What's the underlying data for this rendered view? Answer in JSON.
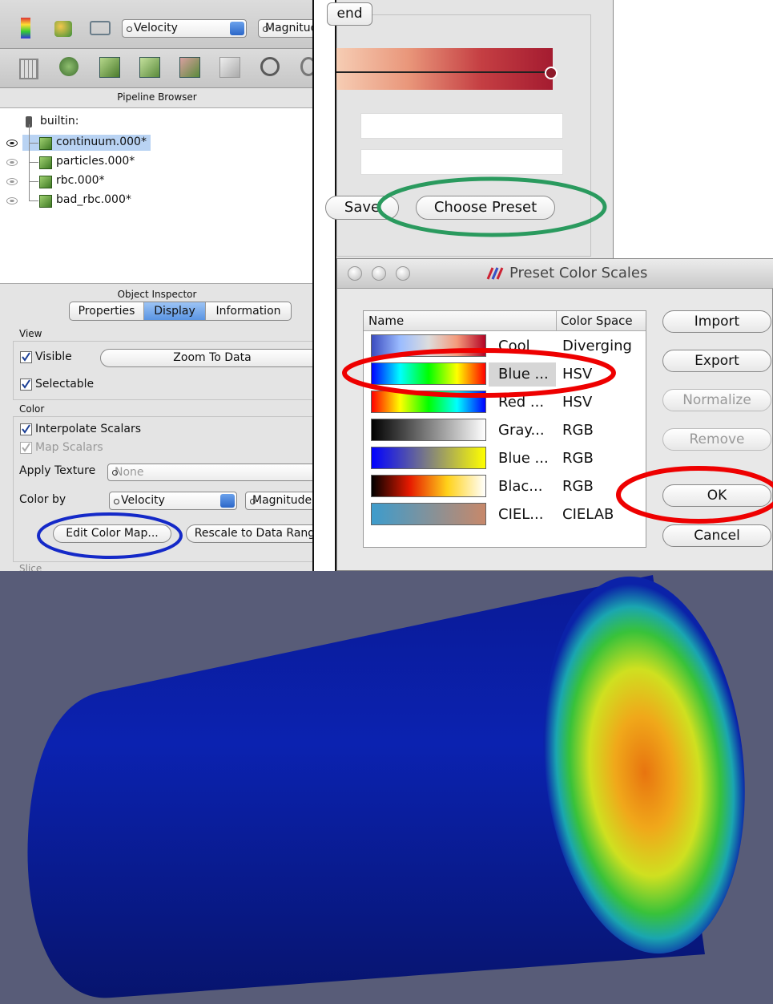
{
  "toolbar": {
    "array": "Velocity",
    "component": "Magnitud"
  },
  "pipeline_browser": {
    "title": "Pipeline Browser",
    "root": "builtin:",
    "items": [
      "continuum.000*",
      "particles.000*",
      "rbc.000*",
      "bad_rbc.000*"
    ]
  },
  "object_inspector": {
    "title": "Object Inspector",
    "tabs": [
      "Properties",
      "Display",
      "Information"
    ],
    "view_section": "View",
    "visible": "Visible",
    "zoom_to_data": "Zoom To Data",
    "selectable": "Selectable",
    "color_section": "Color",
    "interpolate_scalars": "Interpolate Scalars",
    "map_scalars": "Map Scalars",
    "apply_texture": "Apply Texture",
    "texture_value": "None",
    "color_by": "Color by",
    "color_by_array": "Velocity",
    "color_by_component": "Magnitude",
    "edit_color_map": "Edit Color Map...",
    "rescale": "Rescale to Data Rang",
    "next_section": "Slice"
  },
  "color_map_editor": {
    "tab": "end",
    "save": "Save",
    "choose_preset": "Choose Preset"
  },
  "preset_dialog": {
    "title": "Preset Color Scales",
    "columns": [
      "Name",
      "Color Space"
    ],
    "rows": [
      [
        "Cool",
        "Diverging"
      ],
      [
        "Blue ...",
        "HSV"
      ],
      [
        "Red ...",
        "HSV"
      ],
      [
        "Gray...",
        "RGB"
      ],
      [
        "Blue ...",
        "RGB"
      ],
      [
        "Blac...",
        "RGB"
      ],
      [
        "CIEL...",
        "CIELAB"
      ]
    ],
    "buttons": [
      "Import",
      "Export",
      "Normalize",
      "Remove",
      "OK",
      "Cancel"
    ]
  }
}
